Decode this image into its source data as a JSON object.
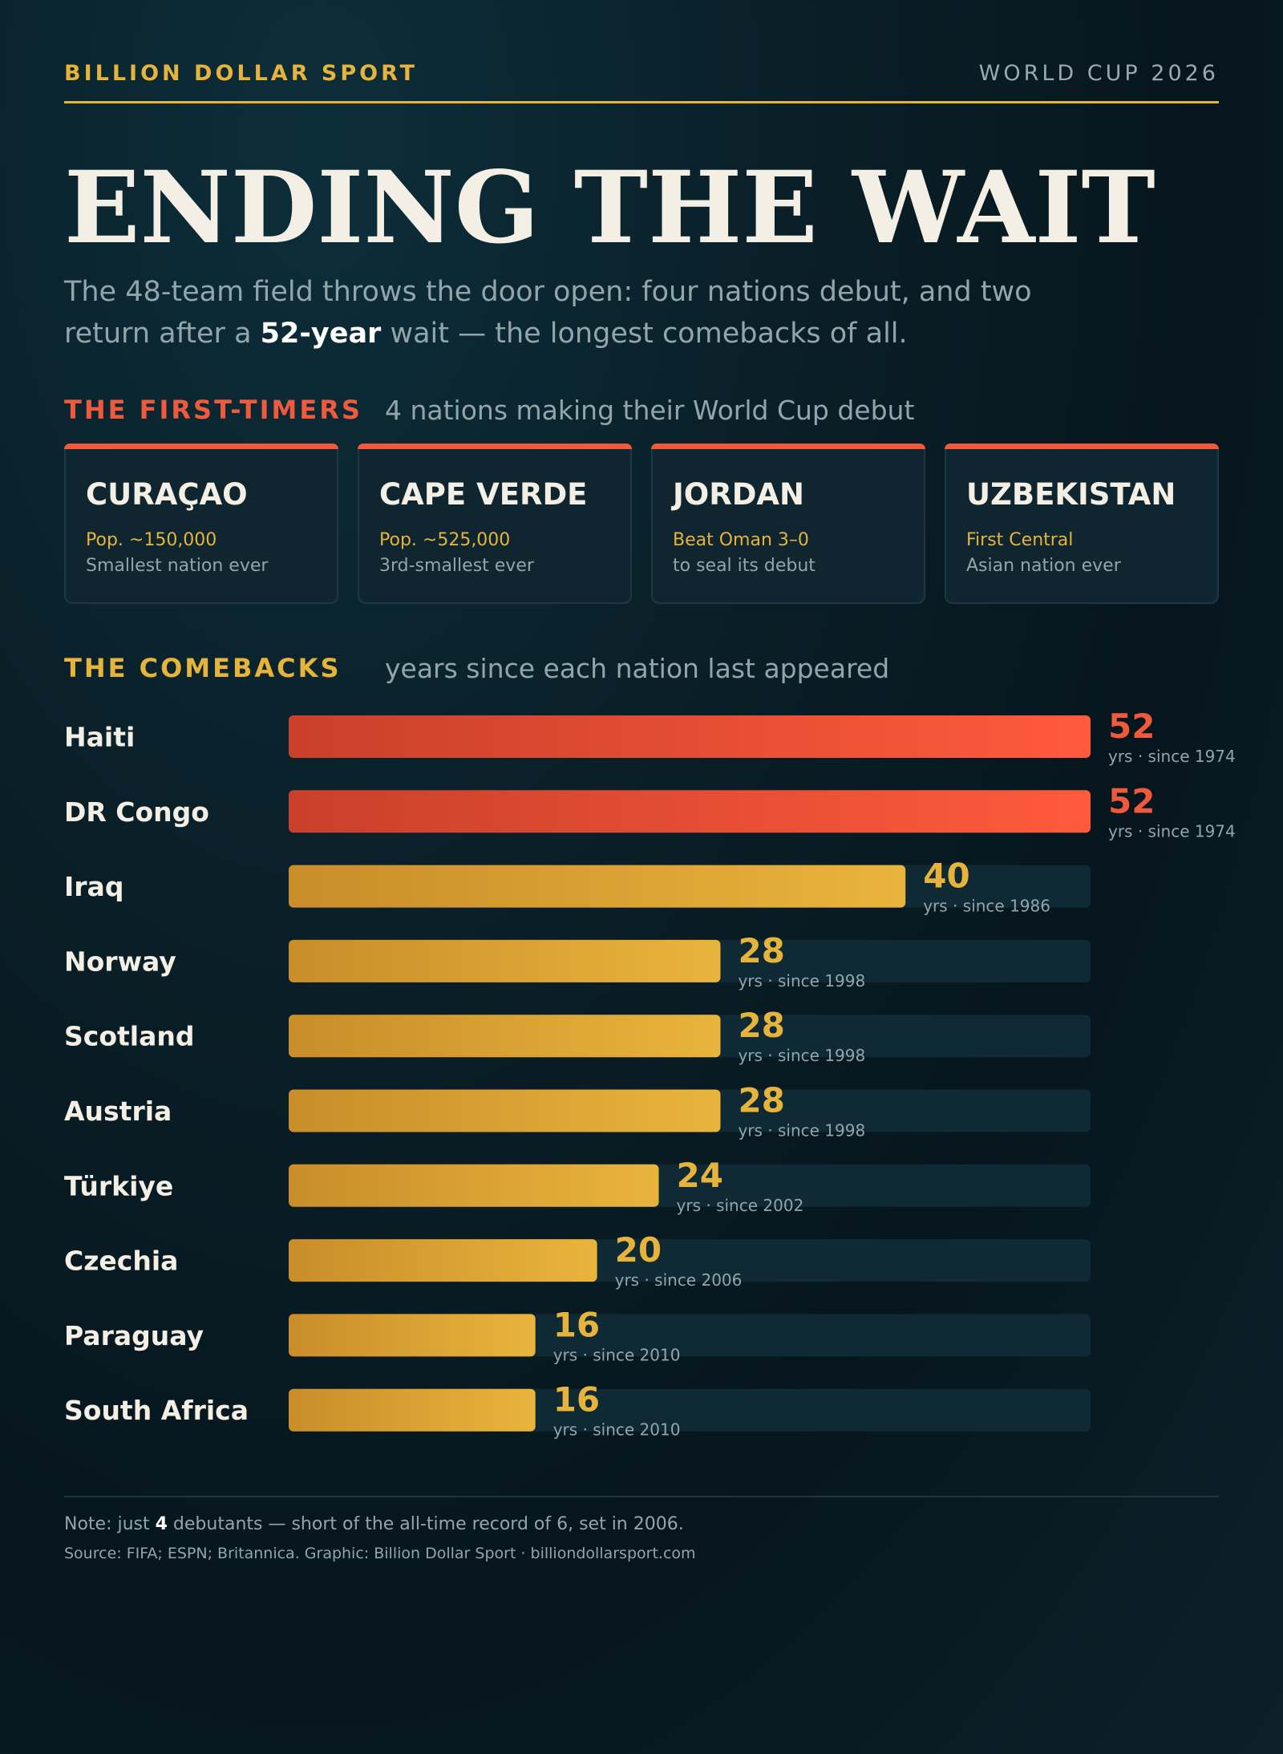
{
  "header": {
    "brand": "BILLION DOLLAR SPORT",
    "edition": "WORLD CUP 2026"
  },
  "title": "ENDING THE WAIT",
  "subtitle": {
    "part1": "The 48-team field throws the door open: four nations debut, and two return after a ",
    "bold": "52-year",
    "part2": " wait — the longest comebacks of all."
  },
  "first_timers": {
    "label": "THE FIRST-TIMERS",
    "note": "4 nations making their World Cup debut",
    "cards": [
      {
        "name": "CURAÇAO",
        "highlight": "Pop. ~150,000",
        "sub": "Smallest nation ever"
      },
      {
        "name": "CAPE VERDE",
        "highlight": "Pop. ~525,000",
        "sub": "3rd-smallest ever"
      },
      {
        "name": "JORDAN",
        "highlight": "Beat Oman 3–0",
        "sub": "to seal its debut"
      },
      {
        "name": "UZBEKISTAN",
        "highlight": "First Central",
        "sub": "Asian nation ever"
      }
    ]
  },
  "comebacks": {
    "label": "THE COMEBACKS",
    "note": "years since each nation last appeared"
  },
  "chart_data": {
    "type": "bar",
    "orientation": "horizontal",
    "categories": [
      "Haiti",
      "DR Congo",
      "Iraq",
      "Norway",
      "Scotland",
      "Austria",
      "Türkiye",
      "Czechia",
      "Paraguay",
      "South Africa"
    ],
    "values": [
      52,
      52,
      40,
      28,
      28,
      28,
      24,
      20,
      16,
      16
    ],
    "since": [
      "yrs · since 1974",
      "yrs · since 1974",
      "yrs · since 1986",
      "yrs · since 1998",
      "yrs · since 1998",
      "yrs · since 1998",
      "yrs · since 2002",
      "yrs · since 2006",
      "yrs · since 2010",
      "yrs · since 2010"
    ],
    "xlim": [
      0,
      52
    ],
    "colors": {
      "longest": "#ef5a3c",
      "other": "#e6b33b",
      "track": "#0f2a34"
    }
  },
  "footer": {
    "note_part1": "Note: just ",
    "note_bold": "4",
    "note_part2": " debutants — short of the all-time record of 6, set in 2006.",
    "source": "Source: FIFA; ESPN; Britannica. Graphic: Billion Dollar Sport · billiondollarsport.com"
  }
}
